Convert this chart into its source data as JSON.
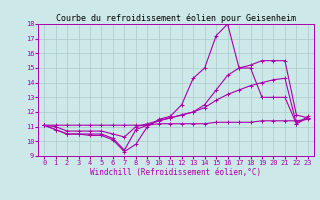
{
  "title": "Courbe du refroidissement éolien pour Geisenheim",
  "xlabel": "Windchill (Refroidissement éolien,°C)",
  "bg_color": "#cce8e8",
  "line_color": "#aa00aa",
  "grid_color": "#aacccc",
  "xlim": [
    -0.5,
    23.5
  ],
  "ylim": [
    9,
    18
  ],
  "yticks": [
    9,
    10,
    11,
    12,
    13,
    14,
    15,
    16,
    17,
    18
  ],
  "xticks": [
    0,
    1,
    2,
    3,
    4,
    5,
    6,
    7,
    8,
    9,
    10,
    11,
    12,
    13,
    14,
    15,
    16,
    17,
    18,
    19,
    20,
    21,
    22,
    23
  ],
  "lines": [
    [
      11.1,
      10.8,
      10.5,
      10.5,
      10.4,
      10.4,
      10.1,
      9.3,
      9.8,
      11.0,
      11.5,
      11.7,
      12.5,
      14.3,
      15.0,
      17.2,
      18.0,
      15.0,
      15.0,
      13.0,
      13.0,
      13.0,
      11.2,
      11.7
    ],
    [
      11.1,
      10.8,
      10.5,
      10.5,
      10.5,
      10.5,
      10.2,
      9.4,
      10.8,
      11.1,
      11.4,
      11.6,
      11.8,
      12.0,
      12.5,
      13.5,
      14.5,
      15.0,
      15.2,
      15.5,
      15.5,
      15.5,
      11.8,
      11.6
    ],
    [
      11.1,
      11.0,
      10.7,
      10.7,
      10.7,
      10.7,
      10.5,
      10.3,
      11.0,
      11.2,
      11.4,
      11.6,
      11.8,
      12.0,
      12.3,
      12.8,
      13.2,
      13.5,
      13.8,
      14.0,
      14.2,
      14.3,
      11.2,
      11.6
    ],
    [
      11.1,
      11.1,
      11.1,
      11.1,
      11.1,
      11.1,
      11.1,
      11.1,
      11.1,
      11.1,
      11.2,
      11.2,
      11.2,
      11.2,
      11.2,
      11.3,
      11.3,
      11.3,
      11.3,
      11.4,
      11.4,
      11.4,
      11.4,
      11.5
    ]
  ],
  "marker": "+",
  "markersize": 3,
  "linewidth": 0.8,
  "title_fontsize": 6,
  "tick_fontsize": 5,
  "xlabel_fontsize": 5.5
}
